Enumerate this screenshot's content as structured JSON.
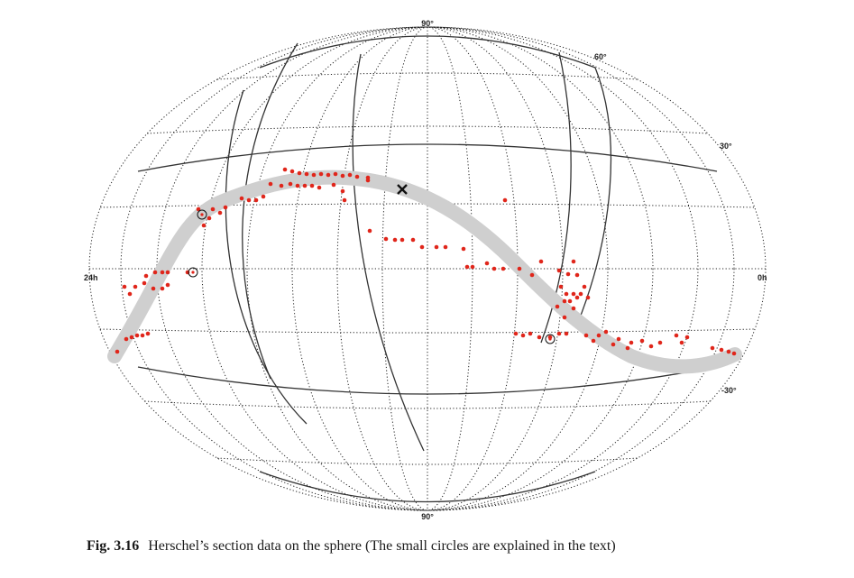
{
  "labels": {
    "north_pole": "90°",
    "south_pole": "90°",
    "lat_60": "60°",
    "lat_30": "30°",
    "lat_minus_30": "-30°",
    "ra_left": "24h",
    "ra_right": "0h"
  },
  "caption": {
    "figure_number": "Fig. 3.16",
    "text": "Herschel’s section data on the sphere (The small circles are explained in the text)"
  },
  "colors": {
    "grid_dotted": "#222222",
    "grid_solid": "#333333",
    "band": "#cfcfcf",
    "points": "#e0261b",
    "marker": "#111111"
  },
  "icons": {
    "pole_marker": "x-marker-icon",
    "special_point": "small-circle-icon"
  }
}
